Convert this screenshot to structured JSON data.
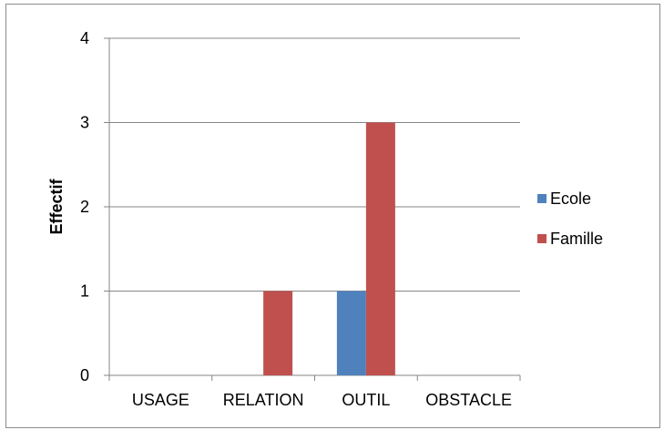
{
  "chart_data": {
    "type": "bar",
    "categories": [
      "USAGE",
      "RELATION",
      "OUTIL",
      "OBSTACLE"
    ],
    "series": [
      {
        "name": "Ecole",
        "values": [
          0,
          0,
          1,
          0
        ],
        "color": "#4f81bd"
      },
      {
        "name": "Famille",
        "values": [
          0,
          1,
          3,
          0
        ],
        "color": "#c0504d"
      }
    ],
    "title": "",
    "xlabel": "",
    "ylabel": "Effectif",
    "ylim": [
      0,
      4
    ],
    "yticks": [
      "0",
      "1",
      "2",
      "3",
      "4"
    ],
    "grid": true,
    "legend_position": "right"
  }
}
